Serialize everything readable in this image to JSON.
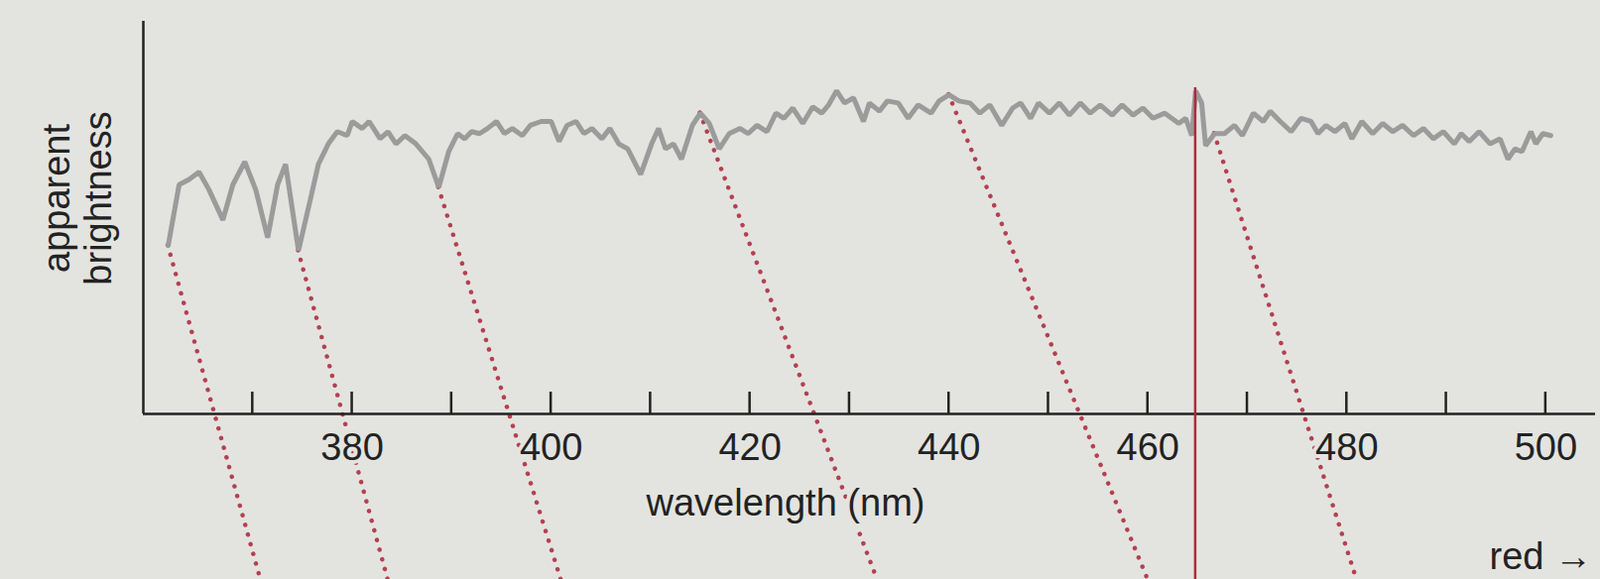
{
  "chart_data": {
    "type": "line",
    "x_label": "wavelength (nm)",
    "y_label": "apparent brightness",
    "color": "#9b9b9b",
    "tick_labels": "x",
    "xlim": [
      359,
      505
    ],
    "ylim": [
      0,
      100
    ],
    "yticks": [],
    "xticks": [
      {
        "value": 370,
        "label": null
      },
      380,
      {
        "value": 390,
        "label": null
      },
      400,
      {
        "value": 410,
        "label": null
      },
      420,
      {
        "value": 430,
        "label": null
      },
      440,
      {
        "value": 450,
        "label": null
      },
      460,
      {
        "value": 470,
        "label": null
      },
      480,
      {
        "value": 490,
        "label": null
      },
      500
    ],
    "x": [
      361.5,
      362.6,
      363.6,
      364.6,
      365.6,
      367.0,
      368.0,
      369.2,
      370.3,
      371.5,
      372.5,
      373.3,
      374.6,
      375.9,
      376.6,
      377.6,
      378.5,
      379.5,
      380.0,
      381.0,
      381.7,
      382.8,
      383.6,
      384.4,
      385.3,
      386.4,
      387.7,
      388.7,
      389.7,
      390.6,
      391.3,
      392.0,
      392.8,
      393.6,
      394.5,
      395.3,
      396.1,
      397.1,
      397.9,
      399.0,
      400.0,
      400.8,
      401.6,
      402.5,
      403.3,
      404.1,
      405.1,
      405.9,
      406.8,
      407.7,
      409.0,
      410.1,
      410.8,
      411.5,
      412.3,
      413.1,
      414.2,
      415.0,
      415.9,
      416.9,
      417.9,
      419.0,
      419.8,
      420.7,
      421.7,
      422.6,
      423.4,
      424.3,
      425.3,
      426.3,
      427.2,
      427.9,
      428.7,
      429.5,
      430.4,
      431.4,
      432.0,
      433.0,
      433.8,
      434.9,
      435.9,
      436.9,
      438.2,
      439.0,
      440.0,
      441.0,
      442.1,
      443.1,
      444.1,
      445.3,
      446.4,
      447.2,
      448.2,
      449.0,
      450.1,
      451.1,
      452.1,
      453.2,
      454.2,
      455.2,
      456.4,
      457.4,
      458.5,
      459.5,
      460.5,
      461.7,
      463.1,
      463.8,
      464.4,
      464.8,
      465.4,
      465.8,
      466.7,
      467.7,
      468.7,
      469.5,
      470.6,
      471.6,
      472.3,
      473.3,
      474.4,
      475.4,
      476.4,
      477.1,
      477.9,
      478.8,
      479.8,
      480.5,
      481.5,
      482.6,
      483.6,
      484.6,
      485.6,
      486.7,
      487.7,
      488.7,
      489.7,
      490.8,
      491.5,
      492.3,
      493.3,
      494.4,
      495.4,
      496.2,
      496.9,
      497.6,
      498.5,
      499.0,
      499.7,
      500.5
    ],
    "values": [
      42.9,
      58.4,
      59.7,
      61.6,
      57.1,
      49.4,
      58.4,
      64.2,
      57.1,
      44.9,
      58.4,
      63.6,
      41.6,
      55.8,
      63.6,
      68.8,
      71.9,
      70.9,
      74.5,
      72.7,
      74.5,
      70.1,
      71.9,
      68.8,
      70.9,
      68.8,
      64.9,
      57.7,
      66.8,
      71.4,
      70.1,
      71.9,
      71.4,
      72.7,
      74.5,
      71.4,
      72.7,
      70.9,
      73.5,
      74.5,
      74.5,
      69.4,
      73.5,
      74.5,
      71.4,
      72.7,
      70.1,
      72.7,
      68.8,
      67.5,
      61.0,
      68.8,
      72.7,
      67.5,
      68.8,
      64.9,
      73.5,
      76.6,
      74.0,
      67.5,
      71.4,
      72.7,
      71.4,
      73.5,
      71.9,
      76.6,
      75.3,
      77.9,
      74.0,
      78.2,
      76.6,
      78.7,
      82.3,
      79.2,
      80.5,
      74.5,
      79.2,
      77.1,
      79.7,
      79.2,
      75.3,
      78.7,
      76.6,
      79.7,
      81.3,
      79.7,
      79.2,
      76.6,
      78.7,
      73.5,
      77.9,
      79.2,
      75.3,
      79.2,
      76.6,
      79.2,
      76.1,
      79.2,
      76.6,
      78.7,
      76.1,
      78.7,
      76.1,
      77.9,
      75.3,
      76.6,
      74.0,
      75.3,
      70.9,
      82.3,
      79.2,
      68.3,
      71.4,
      71.4,
      73.5,
      70.9,
      76.6,
      74.5,
      77.1,
      74.5,
      71.9,
      75.3,
      74.5,
      71.4,
      73.5,
      71.9,
      74.0,
      70.1,
      74.5,
      71.4,
      74.0,
      71.9,
      73.5,
      70.9,
      72.7,
      70.1,
      71.9,
      68.8,
      71.4,
      69.4,
      71.9,
      68.8,
      70.1,
      64.9,
      67.5,
      66.8,
      71.9,
      68.8,
      71.4,
      70.9
    ],
    "shift_lines": [
      {
        "from": 361.5,
        "to": 370.8
      },
      {
        "from": 374.6,
        "to": 383.6
      },
      {
        "from": 388.7,
        "to": 401.0
      },
      {
        "from": 415.0,
        "to": 432.8
      },
      {
        "from": 440.0,
        "to": 460.0
      },
      {
        "from": 466.7,
        "to": 481.0
      }
    ],
    "reference_line": {
      "x": 464.8,
      "top": 83.1
    },
    "annotations": [
      {
        "text": "red →"
      }
    ]
  }
}
